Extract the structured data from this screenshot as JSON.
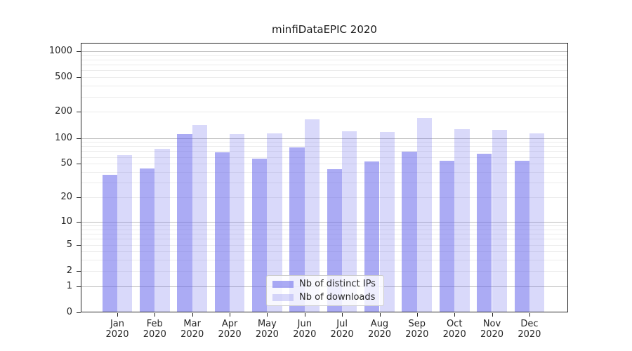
{
  "title": "minfiDataEPIC 2020",
  "colors": {
    "bar_base": "#6666eb",
    "bar_distinct_ips": "rgba(102,102,235,0.55)",
    "bar_downloads": "rgba(102,102,235,0.25)",
    "grid_major": "#bdbdbd",
    "grid_minor": "#ebebeb",
    "axis": "#262626",
    "text": "#262626",
    "legend_border": "#cccccc"
  },
  "chart_data": {
    "type": "bar",
    "title": "minfiDataEPIC 2020",
    "categories": [
      "Jan 2020",
      "Feb 2020",
      "Mar 2020",
      "Apr 2020",
      "May 2020",
      "Jun 2020",
      "Jul 2020",
      "Aug 2020",
      "Sep 2020",
      "Oct 2020",
      "Nov 2020",
      "Dec 2020"
    ],
    "series": [
      {
        "name": "Nb of distinct IPs",
        "values": [
          37,
          44,
          111,
          68,
          57,
          77,
          43,
          53,
          69,
          54,
          66,
          54
        ]
      },
      {
        "name": "Nb of downloads",
        "values": [
          63,
          75,
          142,
          110,
          114,
          163,
          119,
          118,
          171,
          126,
          123,
          112
        ]
      }
    ],
    "xlabel": "",
    "ylabel": "",
    "yscale": "symlog (position proportional to log10(1+y))",
    "ylim": [
      0,
      1250
    ],
    "y_ticks": [
      1000,
      500,
      200,
      100,
      50,
      20,
      10,
      5,
      2,
      1,
      0
    ],
    "grid": "horizontal, major (1,10,100,1000) darker + minor (2-9,20-90,200-900) lighter",
    "legend_position": "inside axes, lower center"
  }
}
